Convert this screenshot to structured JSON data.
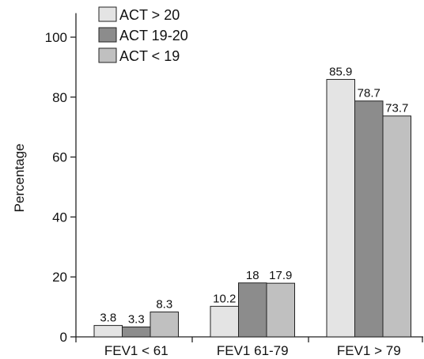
{
  "chart_data": {
    "type": "bar",
    "categories": [
      "FEV1 < 61",
      "FEV1 61-79",
      "FEV1 > 79"
    ],
    "series": [
      {
        "name": "ACT > 20",
        "values": [
          3.8,
          10.2,
          85.9
        ],
        "color": "#e4e4e4"
      },
      {
        "name": "ACT 19-20",
        "values": [
          3.3,
          18,
          78.7
        ],
        "color": "#8c8c8c"
      },
      {
        "name": "ACT < 19",
        "values": [
          8.3,
          17.9,
          73.7
        ],
        "color": "#c0c0c0"
      }
    ],
    "value_labels": [
      [
        "3.8",
        "10.2",
        "85.9"
      ],
      [
        "3.3",
        "18",
        "78.7"
      ],
      [
        "8.3",
        "17.9",
        "73.7"
      ]
    ],
    "title": "",
    "xlabel": "",
    "ylabel": "Percentage",
    "ylim": [
      0,
      108
    ],
    "yticks": [
      0,
      20,
      40,
      60,
      80,
      100
    ],
    "grid": false,
    "legend_position": "top-left"
  }
}
